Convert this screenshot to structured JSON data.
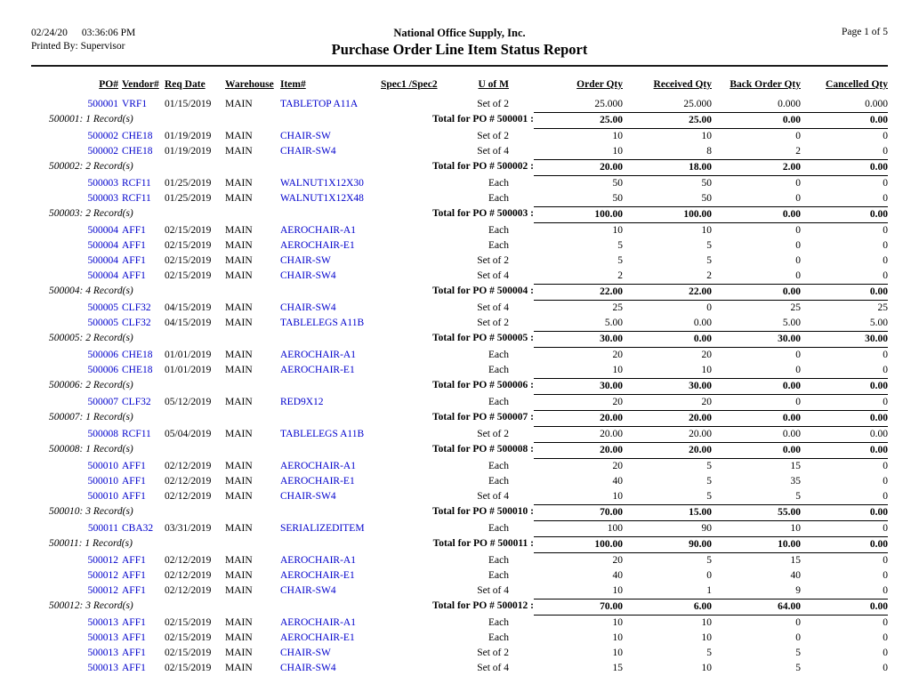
{
  "colors": {
    "link_blue": "#0000CC",
    "text": "#000000",
    "rule": "#1c1c1c"
  },
  "header": {
    "date": "02/24/20",
    "time": "03:36:06 PM",
    "printed_by": "Printed By: Supervisor",
    "company": "National Office Supply, Inc.",
    "title": "Purchase Order Line Item Status Report",
    "page": "Page 1 of 5"
  },
  "columns": [
    "PO#",
    "Vendor#",
    "Req Date",
    "Warehouse",
    "Item#",
    "Spec1 /Spec2",
    "U of M",
    "Order Qty",
    "Received Qty",
    "Back Order Qty",
    "Cancelled Qty"
  ],
  "groups": [
    {
      "rows": [
        [
          "500001",
          "VRF1",
          "01/15/2019",
          "MAIN",
          "TABLETOP A11A",
          "",
          "Set of 2",
          "25.000",
          "25.000",
          "0.000",
          "0.000"
        ]
      ],
      "footer": {
        "records": "500001: 1 Record(s)",
        "label": "Total for PO # 500001 :",
        "totals": [
          "25.00",
          "25.00",
          "0.00",
          "0.00"
        ]
      }
    },
    {
      "rows": [
        [
          "500002",
          "CHE18",
          "01/19/2019",
          "MAIN",
          "CHAIR-SW",
          "",
          "Set of 2",
          "10",
          "10",
          "0",
          "0"
        ],
        [
          "500002",
          "CHE18",
          "01/19/2019",
          "MAIN",
          "CHAIR-SW4",
          "",
          "Set of 4",
          "10",
          "8",
          "2",
          "0"
        ]
      ],
      "footer": {
        "records": "500002: 2 Record(s)",
        "label": "Total for PO # 500002 :",
        "totals": [
          "20.00",
          "18.00",
          "2.00",
          "0.00"
        ]
      }
    },
    {
      "rows": [
        [
          "500003",
          "RCF11",
          "01/25/2019",
          "MAIN",
          "WALNUT1X12X30",
          "",
          "Each",
          "50",
          "50",
          "0",
          "0"
        ],
        [
          "500003",
          "RCF11",
          "01/25/2019",
          "MAIN",
          "WALNUT1X12X48",
          "",
          "Each",
          "50",
          "50",
          "0",
          "0"
        ]
      ],
      "footer": {
        "records": "500003: 2 Record(s)",
        "label": "Total for PO # 500003 :",
        "totals": [
          "100.00",
          "100.00",
          "0.00",
          "0.00"
        ]
      }
    },
    {
      "rows": [
        [
          "500004",
          "AFF1",
          "02/15/2019",
          "MAIN",
          "AEROCHAIR-A1",
          "",
          "Each",
          "10",
          "10",
          "0",
          "0"
        ],
        [
          "500004",
          "AFF1",
          "02/15/2019",
          "MAIN",
          "AEROCHAIR-E1",
          "",
          "Each",
          "5",
          "5",
          "0",
          "0"
        ],
        [
          "500004",
          "AFF1",
          "02/15/2019",
          "MAIN",
          "CHAIR-SW",
          "",
          "Set of 2",
          "5",
          "5",
          "0",
          "0"
        ],
        [
          "500004",
          "AFF1",
          "02/15/2019",
          "MAIN",
          "CHAIR-SW4",
          "",
          "Set of 4",
          "2",
          "2",
          "0",
          "0"
        ]
      ],
      "footer": {
        "records": "500004: 4 Record(s)",
        "label": "Total for PO # 500004 :",
        "totals": [
          "22.00",
          "22.00",
          "0.00",
          "0.00"
        ]
      }
    },
    {
      "rows": [
        [
          "500005",
          "CLF32",
          "04/15/2019",
          "MAIN",
          "CHAIR-SW4",
          "",
          "Set of 4",
          "25",
          "0",
          "25",
          "25"
        ],
        [
          "500005",
          "CLF32",
          "04/15/2019",
          "MAIN",
          "TABLELEGS A11B",
          "",
          "Set of 2",
          "5.00",
          "0.00",
          "5.00",
          "5.00"
        ]
      ],
      "footer": {
        "records": "500005: 2 Record(s)",
        "label": "Total for PO # 500005 :",
        "totals": [
          "30.00",
          "0.00",
          "30.00",
          "30.00"
        ]
      }
    },
    {
      "rows": [
        [
          "500006",
          "CHE18",
          "01/01/2019",
          "MAIN",
          "AEROCHAIR-A1",
          "",
          "Each",
          "20",
          "20",
          "0",
          "0"
        ],
        [
          "500006",
          "CHE18",
          "01/01/2019",
          "MAIN",
          "AEROCHAIR-E1",
          "",
          "Each",
          "10",
          "10",
          "0",
          "0"
        ]
      ],
      "footer": {
        "records": "500006: 2 Record(s)",
        "label": "Total for PO # 500006 :",
        "totals": [
          "30.00",
          "30.00",
          "0.00",
          "0.00"
        ]
      }
    },
    {
      "rows": [
        [
          "500007",
          "CLF32",
          "05/12/2019",
          "MAIN",
          "RED9X12",
          "",
          "Each",
          "20",
          "20",
          "0",
          "0"
        ]
      ],
      "footer": {
        "records": "500007: 1 Record(s)",
        "label": "Total for PO # 500007 :",
        "totals": [
          "20.00",
          "20.00",
          "0.00",
          "0.00"
        ]
      }
    },
    {
      "rows": [
        [
          "500008",
          "RCF11",
          "05/04/2019",
          "MAIN",
          "TABLELEGS A11B",
          "",
          "Set of 2",
          "20.00",
          "20.00",
          "0.00",
          "0.00"
        ]
      ],
      "footer": {
        "records": "500008: 1 Record(s)",
        "label": "Total for PO # 500008 :",
        "totals": [
          "20.00",
          "20.00",
          "0.00",
          "0.00"
        ]
      }
    },
    {
      "rows": [
        [
          "500010",
          "AFF1",
          "02/12/2019",
          "MAIN",
          "AEROCHAIR-A1",
          "",
          "Each",
          "20",
          "5",
          "15",
          "0"
        ],
        [
          "500010",
          "AFF1",
          "02/12/2019",
          "MAIN",
          "AEROCHAIR-E1",
          "",
          "Each",
          "40",
          "5",
          "35",
          "0"
        ],
        [
          "500010",
          "AFF1",
          "02/12/2019",
          "MAIN",
          "CHAIR-SW4",
          "",
          "Set of 4",
          "10",
          "5",
          "5",
          "0"
        ]
      ],
      "footer": {
        "records": "500010: 3 Record(s)",
        "label": "Total for PO # 500010 :",
        "totals": [
          "70.00",
          "15.00",
          "55.00",
          "0.00"
        ]
      }
    },
    {
      "rows": [
        [
          "500011",
          "CBA32",
          "03/31/2019",
          "MAIN",
          "SERIALIZEDITEM",
          "",
          "Each",
          "100",
          "90",
          "10",
          "0"
        ]
      ],
      "footer": {
        "records": "500011: 1 Record(s)",
        "label": "Total for PO # 500011 :",
        "totals": [
          "100.00",
          "90.00",
          "10.00",
          "0.00"
        ]
      }
    },
    {
      "rows": [
        [
          "500012",
          "AFF1",
          "02/12/2019",
          "MAIN",
          "AEROCHAIR-A1",
          "",
          "Each",
          "20",
          "5",
          "15",
          "0"
        ],
        [
          "500012",
          "AFF1",
          "02/12/2019",
          "MAIN",
          "AEROCHAIR-E1",
          "",
          "Each",
          "40",
          "0",
          "40",
          "0"
        ],
        [
          "500012",
          "AFF1",
          "02/12/2019",
          "MAIN",
          "CHAIR-SW4",
          "",
          "Set of 4",
          "10",
          "1",
          "9",
          "0"
        ]
      ],
      "footer": {
        "records": "500012: 3 Record(s)",
        "label": "Total for PO # 500012 :",
        "totals": [
          "70.00",
          "6.00",
          "64.00",
          "0.00"
        ]
      }
    },
    {
      "rows": [
        [
          "500013",
          "AFF1",
          "02/15/2019",
          "MAIN",
          "AEROCHAIR-A1",
          "",
          "Each",
          "10",
          "10",
          "0",
          "0"
        ],
        [
          "500013",
          "AFF1",
          "02/15/2019",
          "MAIN",
          "AEROCHAIR-E1",
          "",
          "Each",
          "10",
          "10",
          "0",
          "0"
        ],
        [
          "500013",
          "AFF1",
          "02/15/2019",
          "MAIN",
          "CHAIR-SW",
          "",
          "Set of 2",
          "10",
          "5",
          "5",
          "0"
        ],
        [
          "500013",
          "AFF1",
          "02/15/2019",
          "MAIN",
          "CHAIR-SW4",
          "",
          "Set of 4",
          "15",
          "10",
          "5",
          "0"
        ]
      ],
      "footer": null
    }
  ]
}
